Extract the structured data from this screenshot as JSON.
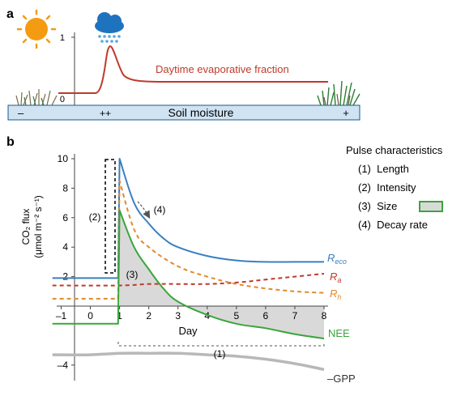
{
  "panel_a": {
    "label": "a",
    "y_tick_top": "1",
    "y_tick_bottom": "0",
    "curve_label": "Daytime evaporative fraction",
    "bar_label": "Soil moisture",
    "bar_left": "–",
    "bar_mid": "++",
    "bar_right": "+",
    "icons": [
      "sun-icon",
      "rain-cloud-icon",
      "grass-tuft-icon"
    ],
    "colors": {
      "curve": "#c0392b",
      "bar_fill": "#cfe3f3",
      "bar_edge": "#1b5b8a",
      "sun": "#f39c12",
      "cloud": "#1e73be"
    }
  },
  "panel_b": {
    "label": "b",
    "ylabel_line1": "CO₂ flux",
    "ylabel_line2": "(μmol m⁻² s⁻¹)",
    "xlabel": "Day",
    "x_ticks": [
      "–1",
      "0",
      "1",
      "2",
      "3",
      "4",
      "5",
      "6",
      "7",
      "8"
    ],
    "y_ticks": [
      "10",
      "8",
      "6",
      "4",
      "2",
      "–4"
    ],
    "annotations": {
      "length": "(1)",
      "intensity": "(2)",
      "size": "(3)",
      "decay": "(4)"
    },
    "series_labels": {
      "reco": "R",
      "reco_sub": "eco",
      "ra": "R",
      "ra_sub": "a",
      "rh": "R",
      "rh_sub": "h",
      "nee": "NEE",
      "gpp": "–GPP"
    },
    "legend": {
      "title": "Pulse characteristics",
      "items": [
        "(1)  Length",
        "(2)  Intensity",
        "(3)  Size",
        "(4)  Decay rate"
      ]
    },
    "colors": {
      "reco": "#3a7fc1",
      "ra": "#c0392b",
      "rh": "#e08a2c",
      "nee": "#3aa53a",
      "gpp": "#b8b8b8",
      "size_fill": "#d9d9d9"
    }
  },
  "chart_data": {
    "type": "line",
    "xlabel": "Day",
    "ylabel": "CO₂ flux (μmol m⁻² s⁻¹)",
    "xlim": [
      -1.3,
      8.1
    ],
    "ylim": [
      -4.8,
      10.5
    ],
    "grid": false,
    "series": [
      {
        "name": "Reco",
        "style": "solid",
        "x": [
          -1.3,
          0.95,
          1.0,
          1.5,
          2,
          2.5,
          3,
          4,
          5,
          6,
          7,
          8
        ],
        "y": [
          1.9,
          1.9,
          10.0,
          7.0,
          5.6,
          4.6,
          4.0,
          3.4,
          3.1,
          3.0,
          3.0,
          3.0
        ]
      },
      {
        "name": "Ra",
        "style": "dashed",
        "x": [
          -1.3,
          1,
          2,
          3,
          4,
          5,
          6,
          7,
          8
        ],
        "y": [
          1.4,
          1.4,
          1.5,
          1.5,
          1.5,
          1.6,
          1.8,
          2.0,
          2.2
        ]
      },
      {
        "name": "Rh",
        "style": "dashed",
        "x": [
          -1.3,
          0.95,
          1.0,
          1.5,
          2,
          3,
          4,
          5,
          6,
          7,
          8
        ],
        "y": [
          0.5,
          0.5,
          8.5,
          5.2,
          4.0,
          2.7,
          2.0,
          1.5,
          1.2,
          1.0,
          0.9
        ]
      },
      {
        "name": "NEE",
        "style": "solid",
        "x": [
          -1.3,
          0.95,
          1.0,
          1.5,
          2,
          2.5,
          3,
          4,
          5,
          6,
          7,
          8
        ],
        "y": [
          -1.2,
          -1.2,
          6.5,
          4.0,
          2.5,
          1.2,
          0.3,
          -0.6,
          -1.2,
          -1.5,
          -1.9,
          -2.2
        ]
      },
      {
        "name": "–GPP",
        "style": "solid",
        "x": [
          -1.3,
          0,
          1,
          2,
          3,
          4,
          5,
          6,
          7,
          8
        ],
        "y": [
          -3.3,
          -3.3,
          -3.2,
          -3.2,
          -3.2,
          -3.3,
          -3.4,
          -3.6,
          -3.9,
          -4.3
        ]
      }
    ]
  }
}
